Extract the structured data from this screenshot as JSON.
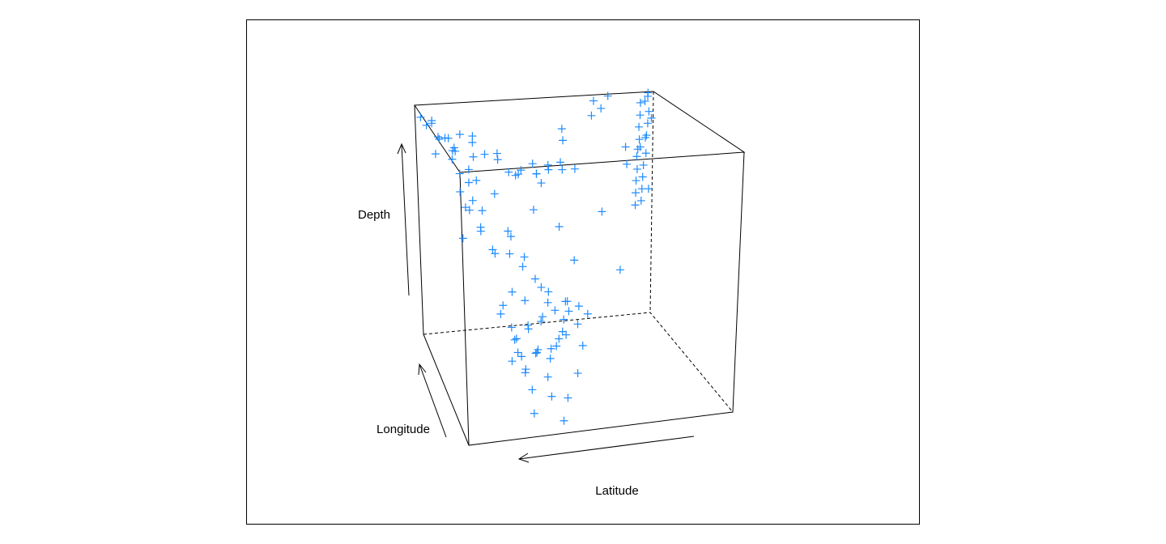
{
  "chart_data": {
    "type": "cloud",
    "xlabel": "Latitude",
    "ylabel": "Longitude",
    "zlabel": "Depth",
    "xlim": [
      -38.59,
      -10.72
    ],
    "ylim": [
      165.67,
      188.13
    ],
    "zlim": [
      40,
      680
    ],
    "series": [
      {
        "color": "#1E8BFF",
        "x": [
          -11.0,
          -11.3,
          -11.5,
          -11.8,
          -12.1,
          -12.5,
          -12.2,
          -11.6,
          -11.9,
          -12.4,
          -12.8,
          -13.5,
          -14.2,
          -14.8,
          -15.5,
          -16.2,
          -16.8,
          -17.5,
          -18.3,
          -19.0,
          -19.8,
          -20.5,
          -21.2,
          -21.8,
          -22.5,
          -13.0,
          -12.0,
          -13.8,
          -15.0,
          -17.0,
          -18.5,
          -20.0,
          -14.0,
          -23.5,
          -25.0,
          -12.5,
          -37.5,
          -37.0,
          -36.8,
          -37.2,
          -36.5,
          -36.9,
          -36.2,
          -36.6,
          -36.0,
          -35.8,
          -36.3,
          -35.6,
          -35.9,
          -35.4,
          -35.7,
          -35.2,
          -35.5,
          -35.0,
          -35.3,
          -34.8,
          -36.5,
          -35.2,
          -34.8,
          -37.8,
          -33.0,
          -32.0,
          -30.5,
          -31.5,
          -13.0,
          -13.5,
          -14.0,
          -14.5,
          -15.0,
          -15.5,
          -16.0,
          -16.5,
          -17.0,
          -17.5,
          -18.0,
          -18.5,
          -19.0,
          -19.5,
          -20.0,
          -20.5,
          -21.0,
          -21.5,
          -22.0,
          -23.0,
          -24.0,
          -25.0,
          -12.5,
          -13.2,
          -14.8,
          -28.0,
          -31.0,
          -29.5,
          -33.0,
          -32.0,
          -16.5,
          -16.8,
          -17.0,
          -17.2,
          -17.5,
          -17.8,
          -18.0,
          -18.2,
          -18.5,
          -18.8,
          -19.0,
          -19.2,
          -19.5,
          -19.8,
          -20.0,
          -20.3,
          -20.6,
          -20.9,
          -21.2,
          -21.5,
          -21.8,
          -22.2,
          -22.5,
          -23.0,
          -16.0,
          -15.5,
          -17.5,
          -19.0,
          -20.0,
          -22.0,
          -23.5,
          -24.5,
          -18.0,
          -21.0,
          -16.0,
          -27.0,
          -27.8,
          -28.5,
          -29.2,
          -30.0,
          -26.5,
          -28.0
        ],
        "y": [
          186.5,
          185.0,
          183.2,
          181.0,
          179.5,
          177.8,
          175.6,
          173.9,
          171.8,
          169.7,
          168.1,
          184.0,
          181.5,
          178.3,
          176.0,
          173.5,
          171.2,
          169.0,
          167.5,
          168.8,
          167.2,
          170.0,
          168.0,
          169.5,
          167.5,
          186.8,
          184.0,
          182.2,
          179.0,
          176.5,
          174.0,
          172.5,
          175.0,
          175.0,
          180.0,
          187.5,
          187.2,
          186.8,
          187.5,
          186.2,
          186.9,
          185.8,
          186.5,
          185.4,
          185.9,
          185.2,
          184.8,
          185.6,
          184.5,
          185.0,
          184.2,
          184.8,
          183.9,
          184.4,
          183.6,
          184.0,
          184.0,
          182.5,
          183.5,
          187.8,
          187.5,
          187.0,
          186.0,
          187.9,
          177.0,
          175.0,
          179.0,
          173.5,
          176.5,
          178.5,
          174.5,
          177.5,
          172.8,
          180.0,
          175.5,
          178.0,
          174.0,
          176.5,
          180.5,
          173.0,
          177.0,
          179.0,
          175.5,
          181.0,
          178.0,
          176.0,
          174.0,
          172.0,
          180.5,
          176.0,
          177.0,
          174.5,
          176.0,
          180.0,
          170.0,
          169.2,
          170.8,
          168.8,
          171.5,
          169.5,
          170.5,
          168.5,
          171.0,
          172.0,
          169.0,
          170.2,
          171.8,
          168.2,
          170.8,
          172.5,
          169.8,
          171.2,
          173.0,
          170.0,
          172.0,
          173.8,
          171.0,
          172.5,
          171.5,
          170.5,
          173.5,
          174.0,
          167.5,
          168.5,
          170.0,
          171.5,
          167.0,
          166.5,
          168.0,
          185.5,
          186.0,
          185.0,
          186.5,
          185.8,
          184.5,
          187.0
        ],
        "z": [
          660,
          650,
          670,
          645,
          660,
          640,
          665,
          650,
          630,
          655,
          640,
          620,
          650,
          670,
          640,
          660,
          630,
          650,
          675,
          640,
          660,
          650,
          670,
          640,
          655,
          600,
          580,
          600,
          610,
          620,
          600,
          610,
          680,
          670,
          660,
          640,
          675,
          665,
          655,
          640,
          625,
          610,
          595,
          580,
          565,
          550,
          535,
          520,
          505,
          490,
          475,
          460,
          445,
          430,
          415,
          400,
          640,
          600,
          560,
          680,
          680,
          650,
          640,
          665,
          540,
          510,
          480,
          520,
          450,
          420,
          400,
          380,
          470,
          500,
          430,
          360,
          390,
          340,
          540,
          320,
          300,
          460,
          280,
          510,
          420,
          350,
          450,
          560,
          530,
          470,
          580,
          330,
          520,
          600,
          260,
          240,
          220,
          200,
          180,
          160,
          140,
          120,
          250,
          230,
          210,
          190,
          170,
          150,
          270,
          240,
          200,
          160,
          280,
          220,
          180,
          250,
          300,
          200,
          300,
          290,
          310,
          280,
          110,
          90,
          130,
          180,
          80,
          60,
          200,
          80,
          95,
          70,
          100,
          85,
          60,
          110
        ]
      }
    ]
  }
}
